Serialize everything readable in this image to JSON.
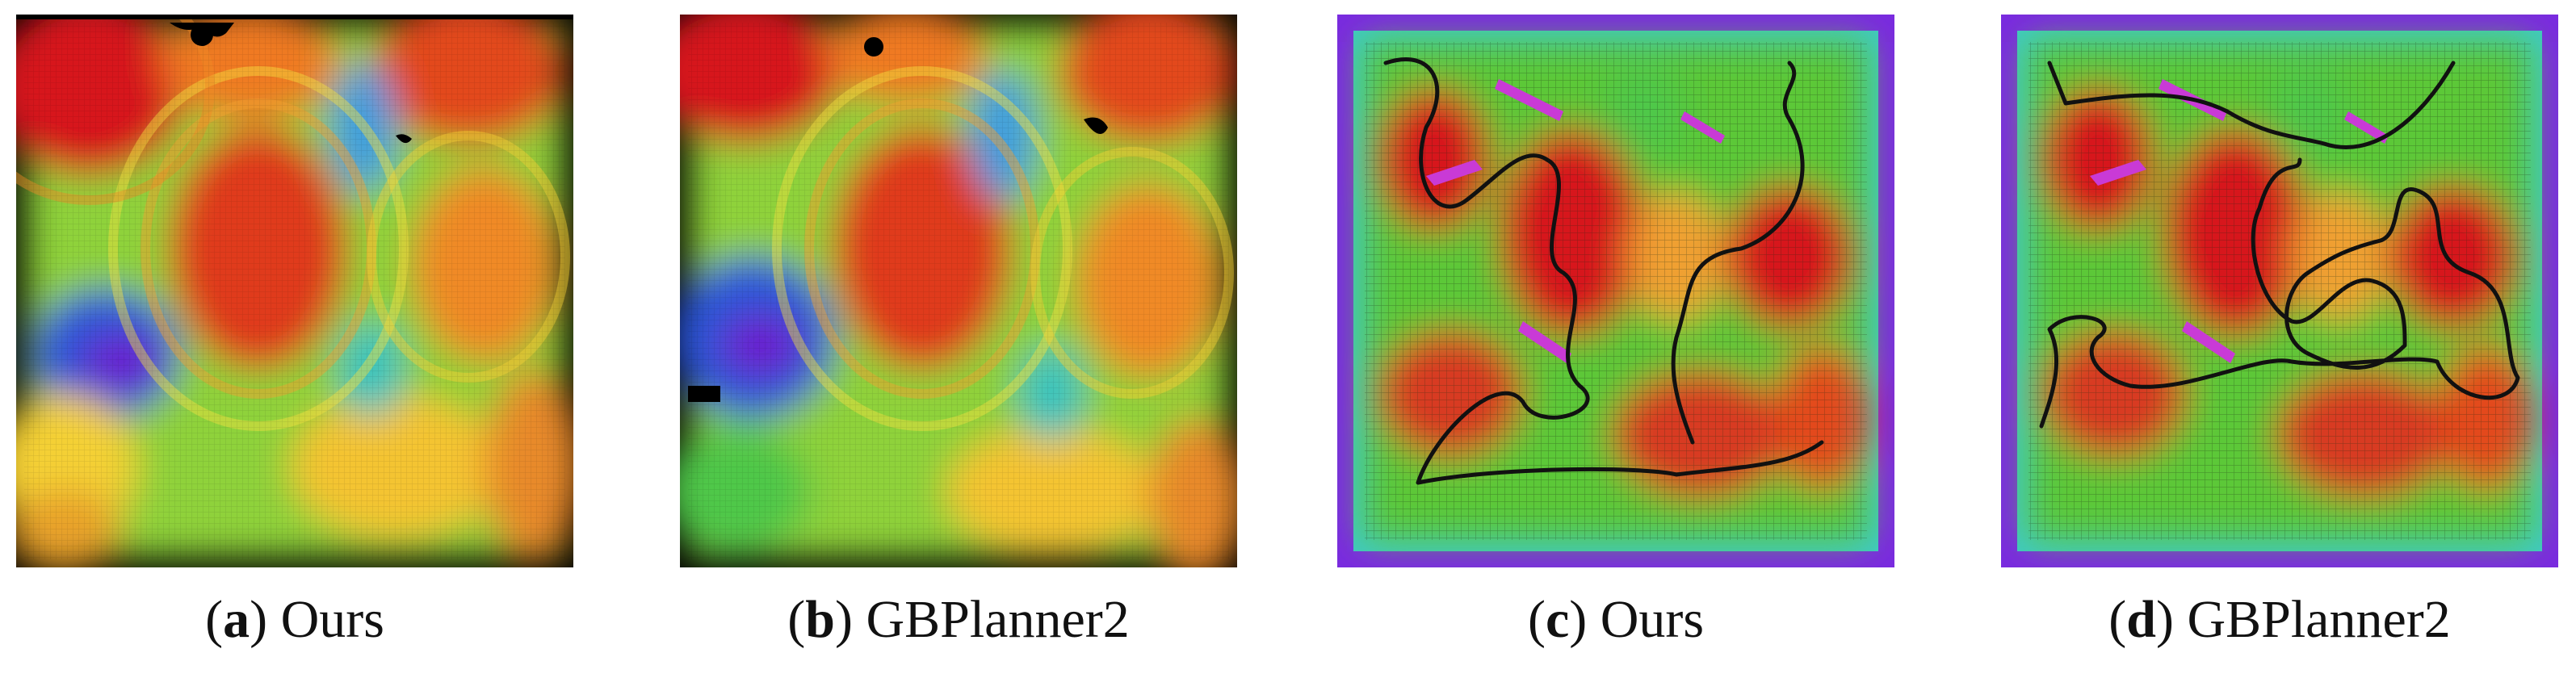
{
  "panels": [
    {
      "letter": "a",
      "label": "Ours"
    },
    {
      "letter": "b",
      "label": "GBPlanner2"
    },
    {
      "letter": "c",
      "label": "Ours"
    },
    {
      "letter": "d",
      "label": "GBPlanner2"
    }
  ],
  "colors": {
    "high": "#d7191c",
    "mid_high": "#f07a24",
    "mid": "#f4d035",
    "mid_low": "#4fc84a",
    "low": "#2e8fd6",
    "lowest": "#6a1fd0",
    "border_purple": "#7a2ae0",
    "path": "#111111"
  }
}
